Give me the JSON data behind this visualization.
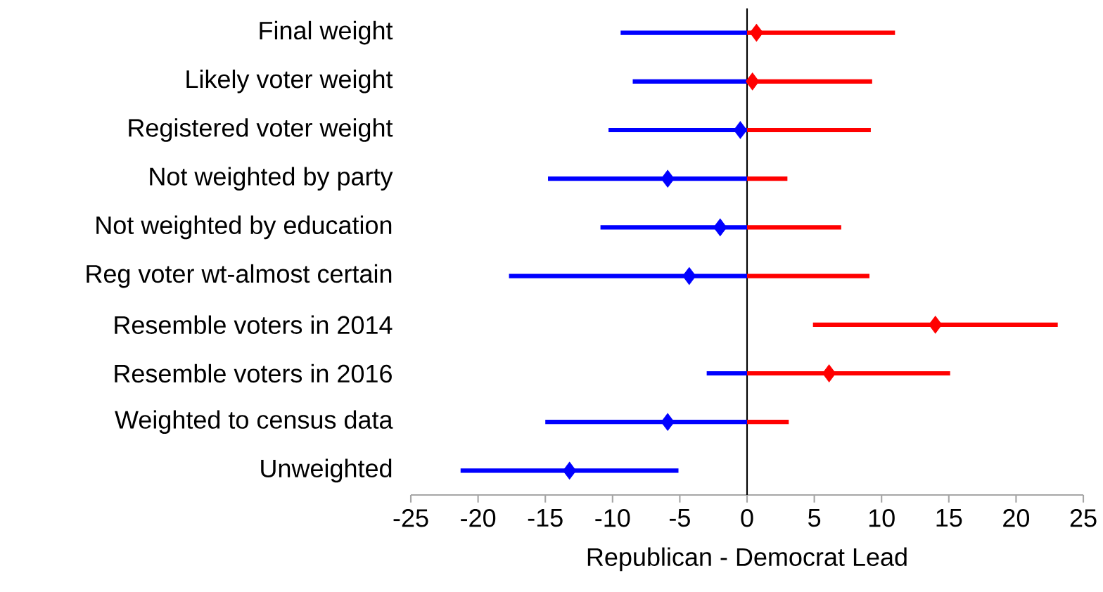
{
  "chart_data": {
    "type": "bar",
    "orientation": "horizontal",
    "xlabel": "Republican - Democrat Lead",
    "categories": [
      "Final weight",
      "Likely voter weight",
      "Registered voter weight",
      "Not weighted by party",
      "Not weighted by education",
      "Reg voter wt-almost certain",
      "Resemble voters in 2014",
      "Resemble voters in 2016",
      "Weighted to census data",
      "Unweighted"
    ],
    "series": [
      {
        "color": "#0000ff",
        "base": [
          -9.4,
          -8.5,
          -10.3,
          -14.8,
          -10.9,
          -17.7,
          null,
          -3.0,
          -15.0,
          -21.3
        ],
        "values": [
          9.4,
          8.5,
          10.3,
          14.8,
          10.9,
          17.7,
          null,
          3.0,
          15.0,
          16.2
        ]
      },
      {
        "color": "#ff0000",
        "base": [
          0,
          0,
          0,
          0,
          0,
          0,
          4.9,
          0,
          0,
          null
        ],
        "values": [
          11.0,
          9.3,
          9.2,
          3.0,
          7.0,
          9.1,
          18.2,
          15.1,
          3.1,
          null
        ]
      },
      {
        "type": "scatter",
        "color": "#0000ff",
        "values": [
          null,
          null,
          -0.5,
          -5.9,
          -2.0,
          -4.3,
          null,
          null,
          -5.9,
          -13.2
        ]
      },
      {
        "type": "scatter",
        "color": "#ff0000",
        "values": [
          0.7,
          0.4,
          null,
          null,
          null,
          null,
          14.0,
          6.1,
          null,
          null
        ]
      }
    ],
    "xlim": [
      -25,
      25
    ],
    "xticks": [
      -25,
      -20,
      -15,
      -10,
      -5,
      0,
      5,
      10,
      15,
      20,
      25
    ],
    "marker": "diamond",
    "grid": false,
    "ref_lines": [
      {
        "axis": "x",
        "value": 0,
        "color": "#000000"
      }
    ]
  }
}
